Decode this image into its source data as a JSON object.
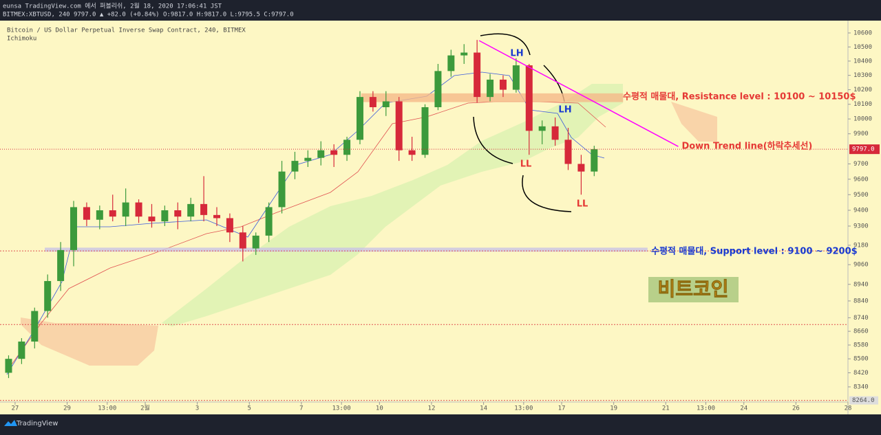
{
  "header": {
    "line1": "eunsa TradingView.com 에서 퍼블리쉬, 2월 18, 2020 17:06:41 JST",
    "line2": "BITMEX:XBTUSD, 240 9797.0 ▲ +82.0 (+0.84%) O:9817.0 H:9817.0 L:9795.5 C:9797.0"
  },
  "footer": {
    "brand": "TradingView"
  },
  "chart_data": {
    "type": "candlestick",
    "title": "Bitcoin / US Dollar Perpetual Inverse Swap Contract, 240, BITMEX",
    "subtitle": "Ichimoku",
    "log_scale": true,
    "up_color": "#3c9a3c",
    "down_color": "#d6293a",
    "xlim": [
      -0.58,
      32
    ],
    "xticks": [
      {
        "value": 0,
        "label": "27"
      },
      {
        "value": 2,
        "label": "29"
      },
      {
        "value": 3.54,
        "label": "13:00"
      },
      {
        "value": 5,
        "label": "2월"
      },
      {
        "value": 7,
        "label": "3"
      },
      {
        "value": 9,
        "label": "5"
      },
      {
        "value": 11,
        "label": "7"
      },
      {
        "value": 12.54,
        "label": "13:00"
      },
      {
        "value": 14,
        "label": "10"
      },
      {
        "value": 16,
        "label": "12"
      },
      {
        "value": 18,
        "label": "14"
      },
      {
        "value": 19.54,
        "label": "13:00"
      },
      {
        "value": 21,
        "label": "17"
      },
      {
        "value": 23,
        "label": "19"
      },
      {
        "value": 25,
        "label": "21"
      },
      {
        "value": 26.54,
        "label": "13:00"
      },
      {
        "value": 28,
        "label": "24"
      },
      {
        "value": 30,
        "label": "26"
      },
      {
        "value": 32,
        "label": "28"
      }
    ],
    "ylim": [
      8186,
      10689
    ],
    "yticks": [
      10600,
      10500,
      10400,
      10300,
      10200,
      10100,
      10000,
      9900,
      9700,
      9600,
      9500,
      9400,
      9300,
      9180,
      9060,
      8940,
      8840,
      8740,
      8660,
      8580,
      8500,
      8420,
      8340
    ],
    "x": [
      -0.25,
      0.25,
      0.75,
      1.25,
      1.75,
      2.25,
      2.75,
      3.25,
      3.75,
      4.25,
      4.75,
      5.25,
      5.75,
      6.25,
      6.75,
      7.25,
      7.75,
      8.25,
      8.75,
      9.25,
      9.75,
      10.25,
      10.75,
      11.25,
      11.75,
      12.25,
      12.75,
      13.25,
      13.75,
      14.25,
      14.75,
      15.25,
      15.75,
      16.25,
      16.75,
      17.25,
      17.75,
      18.25,
      18.75,
      19.25,
      19.75,
      20.25,
      20.75,
      21.25,
      21.75,
      22.25
    ],
    "open": [
      8420,
      8500,
      8600,
      8780,
      8960,
      9150,
      9420,
      9340,
      9400,
      9360,
      9450,
      9360,
      9330,
      9400,
      9360,
      9440,
      9370,
      9350,
      9260,
      9160,
      9240,
      9420,
      9650,
      9720,
      9740,
      9790,
      9760,
      9860,
      10150,
      10080,
      10120,
      9790,
      9760,
      10080,
      10330,
      10440,
      10460,
      10150,
      10270,
      10200,
      10370,
      9920,
      9950,
      9860,
      9700,
      9650
    ],
    "high": [
      8520,
      8620,
      8800,
      9000,
      9200,
      9460,
      9450,
      9430,
      9500,
      9540,
      9470,
      9440,
      9430,
      9450,
      9480,
      9620,
      9420,
      9380,
      9300,
      9260,
      9450,
      9720,
      9780,
      9790,
      9850,
      9830,
      9880,
      10190,
      10190,
      10190,
      10150,
      9880,
      10100,
      10380,
      10480,
      10520,
      10550,
      10310,
      10300,
      10420,
      10380,
      9990,
      10010,
      9940,
      9760,
      9820
    ],
    "low": [
      8390,
      8470,
      8560,
      8740,
      8900,
      9050,
      9300,
      9280,
      9330,
      9300,
      9320,
      9290,
      9300,
      9280,
      9330,
      9330,
      9300,
      9200,
      9080,
      9120,
      9200,
      9380,
      9600,
      9680,
      9690,
      9680,
      9720,
      9830,
      10050,
      10020,
      9720,
      9720,
      9740,
      10060,
      10290,
      10380,
      10110,
      10120,
      10150,
      10180,
      9760,
      9830,
      9820,
      9660,
      9500,
      9620
    ],
    "close": [
      8500,
      8600,
      8780,
      8960,
      9150,
      9420,
      9340,
      9400,
      9360,
      9450,
      9360,
      9330,
      9400,
      9360,
      9440,
      9370,
      9350,
      9260,
      9160,
      9240,
      9420,
      9650,
      9720,
      9740,
      9790,
      9760,
      9860,
      10150,
      10080,
      10120,
      9790,
      9760,
      10080,
      10330,
      10440,
      10460,
      10150,
      10270,
      10200,
      10370,
      9920,
      9950,
      9860,
      9700,
      9650,
      9797
    ],
    "last_price": {
      "value": 9797,
      "label": "9797.0",
      "color": "#d6293a"
    },
    "hlines": [
      9145,
      8700
    ],
    "level_line": {
      "value": 8264,
      "label": "8264.0"
    },
    "zones": [
      {
        "low": 10115,
        "high": 10175,
        "x": [
          13.3,
          23.36
        ],
        "color": "#f5b98a"
      },
      {
        "low": 9140,
        "high": 9165,
        "x": [
          1.14,
          24.3
        ],
        "color": "#c9c3e6"
      }
    ],
    "trend_line": {
      "label": "Down Trend line(하락추세선)",
      "x": [
        17.83,
        25.48
      ],
      "y": [
        10545,
        9815
      ],
      "color": "#ff00ff"
    },
    "annotations": {
      "resistance": "수평적 매물대, Resistance level : 10100 ~ 10150$",
      "support": "수평적 매물대, Support level : 9100 ~ 9200$",
      "lh": [
        "LH",
        "LH"
      ],
      "ll": [
        "LL",
        "LL"
      ],
      "watermark": "비트코인"
    }
  }
}
